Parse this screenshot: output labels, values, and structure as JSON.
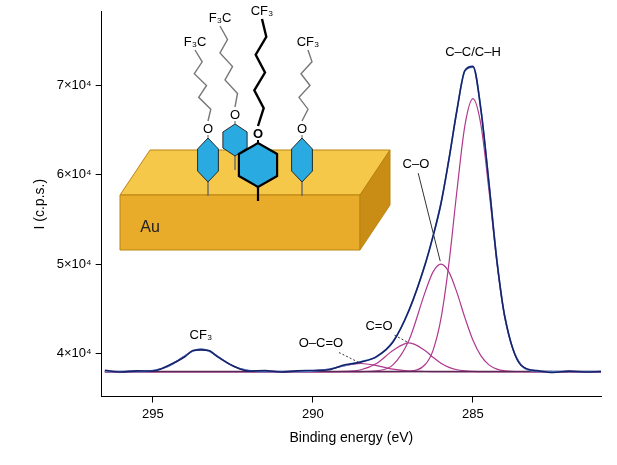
{
  "chart_data": {
    "type": "line",
    "x_label": "Binding energy (eV)",
    "y_label": "I (c.p.s.)",
    "x": [
      296.5,
      296.0,
      295.5,
      295.0,
      294.5,
      294.0,
      293.75,
      293.5,
      293.25,
      293.0,
      292.5,
      292.0,
      291.5,
      291.0,
      290.5,
      290.0,
      289.5,
      289.0,
      288.5,
      288.0,
      287.5,
      287.0,
      286.5,
      286.25,
      286.0,
      285.75,
      285.5,
      285.25,
      285.0,
      284.75,
      284.5,
      284.25,
      284.0,
      283.5,
      283.0,
      282.5,
      282.0,
      281.5,
      281.0
    ],
    "xlim": [
      296.6,
      281
    ],
    "xticks": [
      295,
      290,
      285
    ],
    "ylim": [
      35200,
      78200
    ],
    "yticks": [
      {
        "value": 40000,
        "label": "4×10⁴"
      },
      {
        "value": 50000,
        "label": "5×10⁴"
      },
      {
        "value": 60000,
        "label": "6×10⁴"
      },
      {
        "value": 70000,
        "label": "7×10⁴"
      }
    ],
    "grid": false,
    "series": [
      {
        "name": "CF₃",
        "color": "#b0388f",
        "values": [
          38000,
          38000,
          38009,
          38103,
          38607,
          39755,
          40288,
          40500,
          40288,
          39755,
          38607,
          38103,
          38009,
          38000,
          38000,
          38000,
          38000,
          38000,
          38000,
          38000,
          38000,
          38000,
          38000,
          38000,
          38000,
          38000,
          38000,
          38000,
          38000,
          38000,
          38000,
          38000,
          38000,
          38000,
          38000,
          38000,
          38000,
          38000,
          38000
        ]
      },
      {
        "name": "O–C=O",
        "color": "#b0388f",
        "values": [
          38000,
          38000,
          38000,
          38000,
          38000,
          38000,
          38000,
          38000,
          38000,
          38000,
          38000,
          38000,
          38000,
          38000,
          38006,
          38056,
          38262,
          38662,
          38900,
          38662,
          38262,
          38056,
          38006,
          38000,
          38000,
          38000,
          38000,
          38000,
          38000,
          38000,
          38000,
          38000,
          38000,
          38000,
          38000,
          38000,
          38000,
          38000,
          38000
        ]
      },
      {
        "name": "C=O",
        "color": "#b0388f",
        "values": [
          38000,
          38000,
          38000,
          38000,
          38000,
          38000,
          38000,
          38000,
          38000,
          38000,
          38000,
          38000,
          38000,
          38000,
          38000,
          38000,
          38000,
          38023,
          38200,
          38931,
          40352,
          41200,
          40352,
          39599,
          38931,
          38466,
          38200,
          38073,
          38023,
          38000,
          38000,
          38000,
          38000,
          38000,
          38000,
          38000,
          38000,
          38000,
          38000
        ]
      },
      {
        "name": "C–O",
        "color": "#b0388f",
        "values": [
          38000,
          38000,
          38000,
          38000,
          38000,
          38000,
          38000,
          38000,
          38000,
          38000,
          38000,
          38000,
          38000,
          38000,
          38000,
          38000,
          38000,
          38000,
          38000,
          38087,
          38749,
          41494,
          46818,
          49110,
          50000,
          49110,
          46818,
          43997,
          41494,
          39747,
          38749,
          38275,
          38087,
          38005,
          38000,
          38000,
          38000,
          38000,
          38000
        ]
      },
      {
        "name": "C–C/C–H",
        "color": "#b0388f",
        "values": [
          38000,
          38000,
          38000,
          38000,
          38000,
          38000,
          38000,
          38000,
          38000,
          38000,
          38000,
          38000,
          38000,
          38000,
          38000,
          38000,
          38000,
          38000,
          38000,
          38000,
          38000,
          38043,
          38759,
          40343,
          43905,
          50110,
          58230,
          65530,
          68500,
          65530,
          58230,
          50110,
          43905,
          38759,
          38043,
          38000,
          38000,
          38000,
          38000
        ]
      },
      {
        "color": "#5a2a55",
        "values": [
          38000,
          38000,
          38000,
          38000,
          38000,
          38000,
          38000,
          38000,
          38000,
          38000,
          38000,
          38000,
          38000,
          38000,
          38000,
          38000,
          38000,
          38000,
          38000,
          38000,
          38000,
          38000,
          38000,
          38000,
          38000,
          38000,
          38000,
          38000,
          38000,
          38000,
          38000,
          38000,
          38000,
          38000,
          38000,
          38000,
          38000,
          38000,
          38000
        ]
      },
      {
        "color": "#5b8fd6",
        "values": [
          38000,
          38000,
          38009,
          38103,
          38607,
          39755,
          40288,
          40500,
          40288,
          39755,
          38607,
          38103,
          38009,
          38000,
          38006,
          38056,
          38262,
          38685,
          39100,
          39680,
          41363,
          44793,
          49935,
          53052,
          56836,
          61686,
          67248,
          71600,
          72017,
          67277,
          58979,
          50385,
          43992,
          38764,
          38043,
          38000,
          38000,
          38000,
          38000
        ]
      },
      {
        "color": "#16236b",
        "values": [
          38150,
          37950,
          38080,
          38050,
          38700,
          39650,
          40350,
          40420,
          40350,
          39700,
          38650,
          38050,
          38100,
          37950,
          38080,
          38120,
          38200,
          38750,
          39050,
          39700,
          41300,
          44850,
          49900,
          53100,
          56750,
          61750,
          67200,
          71650,
          72100,
          67200,
          59050,
          50300,
          44050,
          38700,
          38100,
          37900,
          38050,
          37950,
          38000
        ]
      }
    ]
  },
  "inset": {
    "substrate": "Au",
    "end_groups": [
      "F₃C",
      "F₃C",
      "CF₃",
      "CF₃"
    ],
    "linker": "O"
  }
}
